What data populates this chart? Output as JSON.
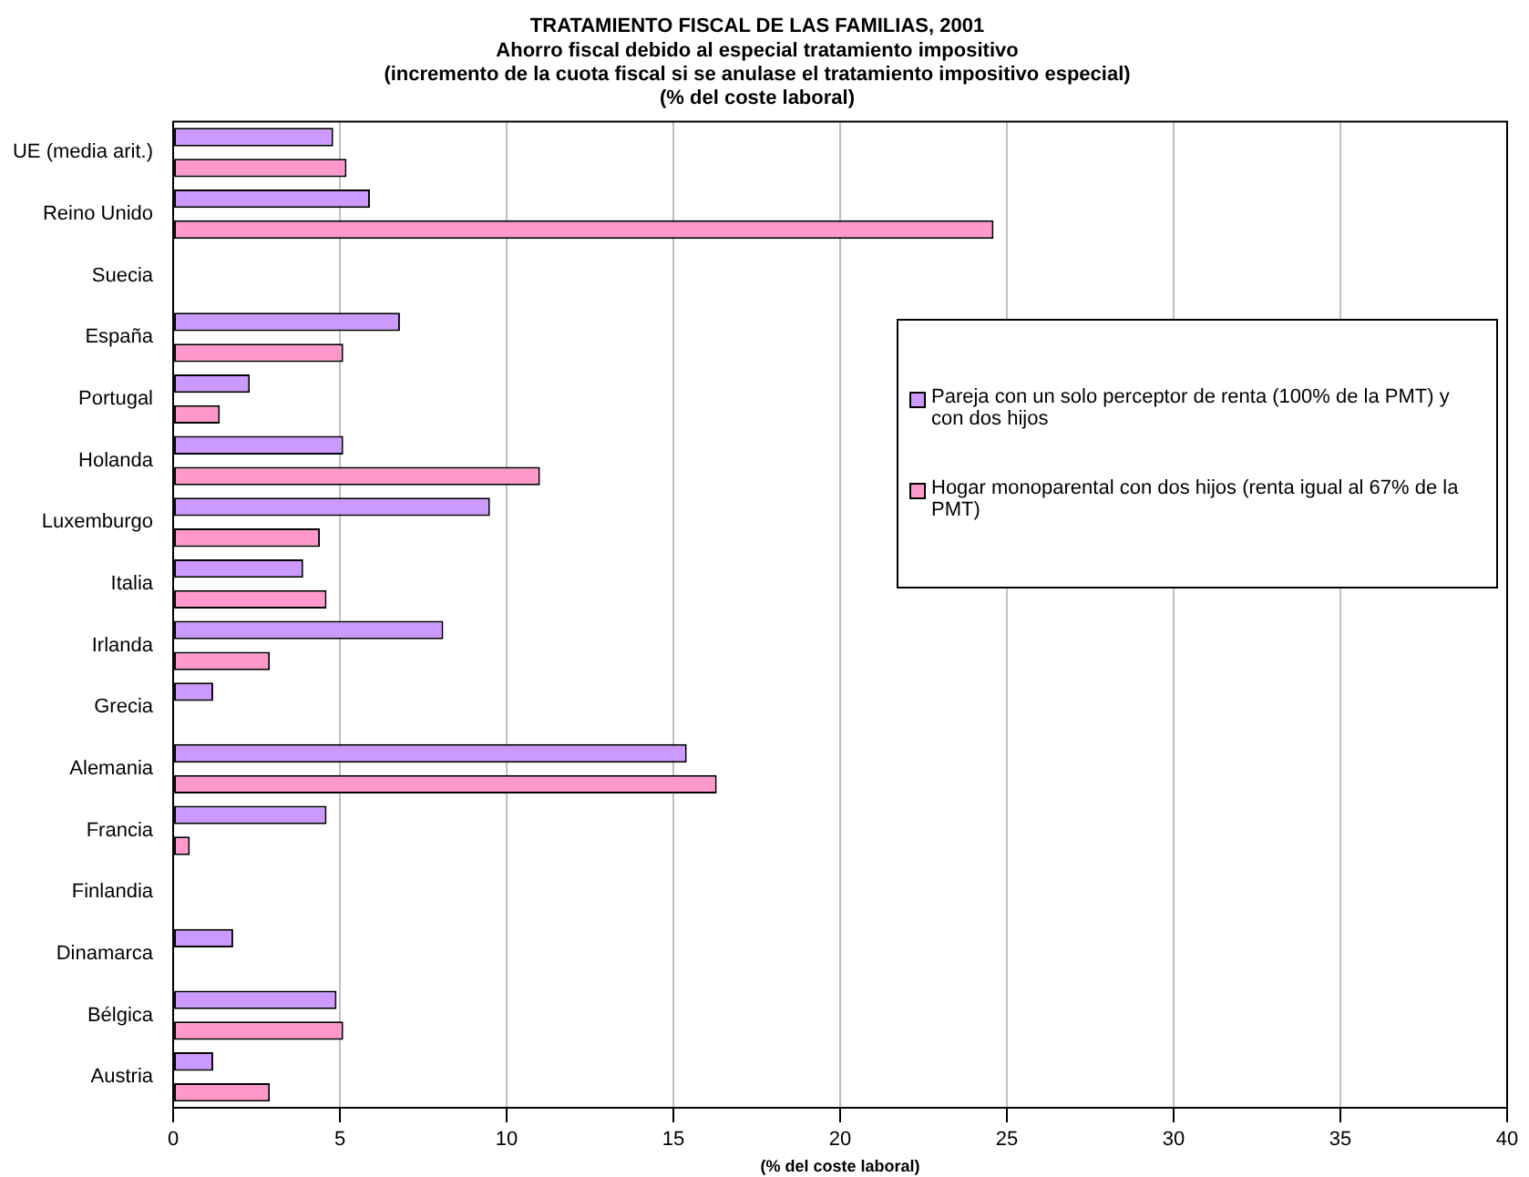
{
  "chart_data": {
    "type": "bar",
    "orientation": "horizontal",
    "title": "TRATAMIENTO FISCAL DE LAS FAMILIAS, 2001",
    "subtitle": "Ahorro fiscal debido al especial tratamiento impositivo\n(incremento de la cuota fiscal si se anulase el tratamiento impositivo especial)\n(% del coste laboral)",
    "xlabel": "(% del coste laboral)",
    "categories": [
      "UE (media arit.)",
      "Reino Unido",
      "Suecia",
      "España",
      "Portugal",
      "Holanda",
      "Luxemburgo",
      "Italia",
      "Irlanda",
      "Grecia",
      "Alemania",
      "Francia",
      "Finlandia",
      "Dinamarca",
      "Bélgica",
      "Austria"
    ],
    "series": [
      {
        "name": "Pareja con un solo perceptor de renta (100% de la PMT) y con dos hijos",
        "color": "#cc99ff",
        "values": [
          4.8,
          5.9,
          null,
          6.8,
          2.3,
          5.1,
          9.5,
          3.9,
          8.1,
          1.2,
          15.4,
          4.6,
          null,
          1.8,
          4.9,
          1.2
        ]
      },
      {
        "name": "Hogar monoparental con dos hijos (renta igual al 67% de la PMT)",
        "color": "#ff99cc",
        "values": [
          5.2,
          24.6,
          null,
          5.1,
          1.4,
          11.0,
          4.4,
          4.6,
          2.9,
          null,
          16.3,
          0.5,
          null,
          null,
          5.1,
          2.9
        ]
      }
    ],
    "xlim": [
      0,
      40
    ],
    "xticks": [
      0,
      5,
      10,
      15,
      20,
      25,
      30,
      35,
      40
    ],
    "grid": "x",
    "legend": "right"
  }
}
